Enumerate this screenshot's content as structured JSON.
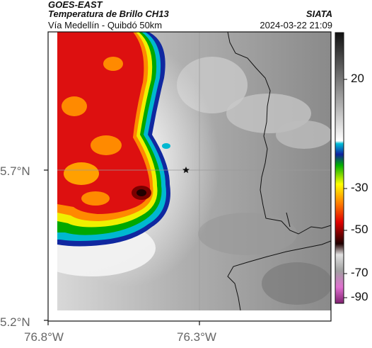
{
  "header": {
    "satellite": "GOES-EAST",
    "product": "Temperatura de Brillo CH13",
    "route": "Vía Medellín - Quibdó 50km",
    "agency": "SIATA",
    "datetime": "2024-03-22 21:09"
  },
  "axes": {
    "lat_labels": [
      "5.7°N",
      "5.2°N"
    ],
    "lon_labels": [
      "76.8°W",
      "76.3°W"
    ]
  },
  "colorbar": {
    "labels": [
      "20",
      "-30",
      "-50",
      "-70",
      "-90"
    ],
    "units": ""
  },
  "marker": {
    "name": "star-marker"
  },
  "colors": {
    "cold_core": "#dd1010",
    "warm_ground": "#8c8c8c",
    "cloud_edge": "#ffffff",
    "border": "#111111"
  }
}
